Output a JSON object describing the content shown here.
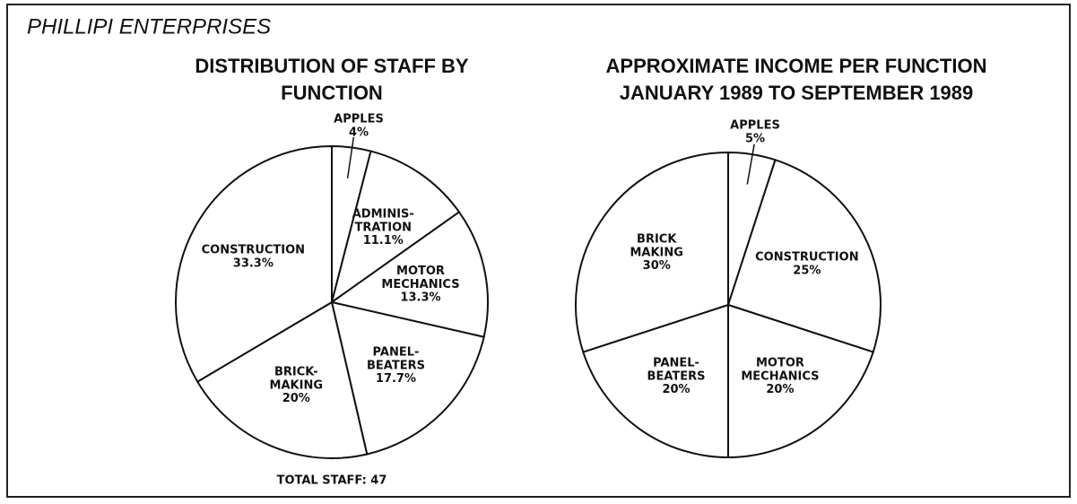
{
  "page_title": "PHILLIPI ENTERPRISES",
  "chart_data": [
    {
      "type": "pie",
      "title": "DISTRIBUTION OF STAFF BY\nFUNCTION",
      "categories": [
        "APPLES",
        "ADMINIS-\nTRATION",
        "MOTOR\nMECHANICS",
        "PANEL-\nBEATERS",
        "BRICK-\nMAKING",
        "CONSTRUCTION"
      ],
      "values": [
        4,
        11.1,
        13.3,
        17.7,
        20,
        33.3
      ],
      "value_labels": [
        "4%",
        "11.1%",
        "13.3%",
        "17.7%",
        "20%",
        "33.3%"
      ],
      "annotation": "TOTAL STAFF: 47",
      "color": "#ffffff"
    },
    {
      "type": "pie",
      "title": "APPROXIMATE INCOME PER FUNCTION\nJANUARY 1989 TO SEPTEMBER 1989",
      "categories": [
        "APPLES",
        "CONSTRUCTION",
        "MOTOR\nMECHANICS",
        "PANEL-\nBEATERS",
        "BRICK\nMAKING"
      ],
      "values": [
        5,
        25,
        20,
        20,
        30
      ],
      "value_labels": [
        "5%",
        "25%",
        "20%",
        "20%",
        "30%"
      ],
      "color": "#ffffff"
    }
  ]
}
